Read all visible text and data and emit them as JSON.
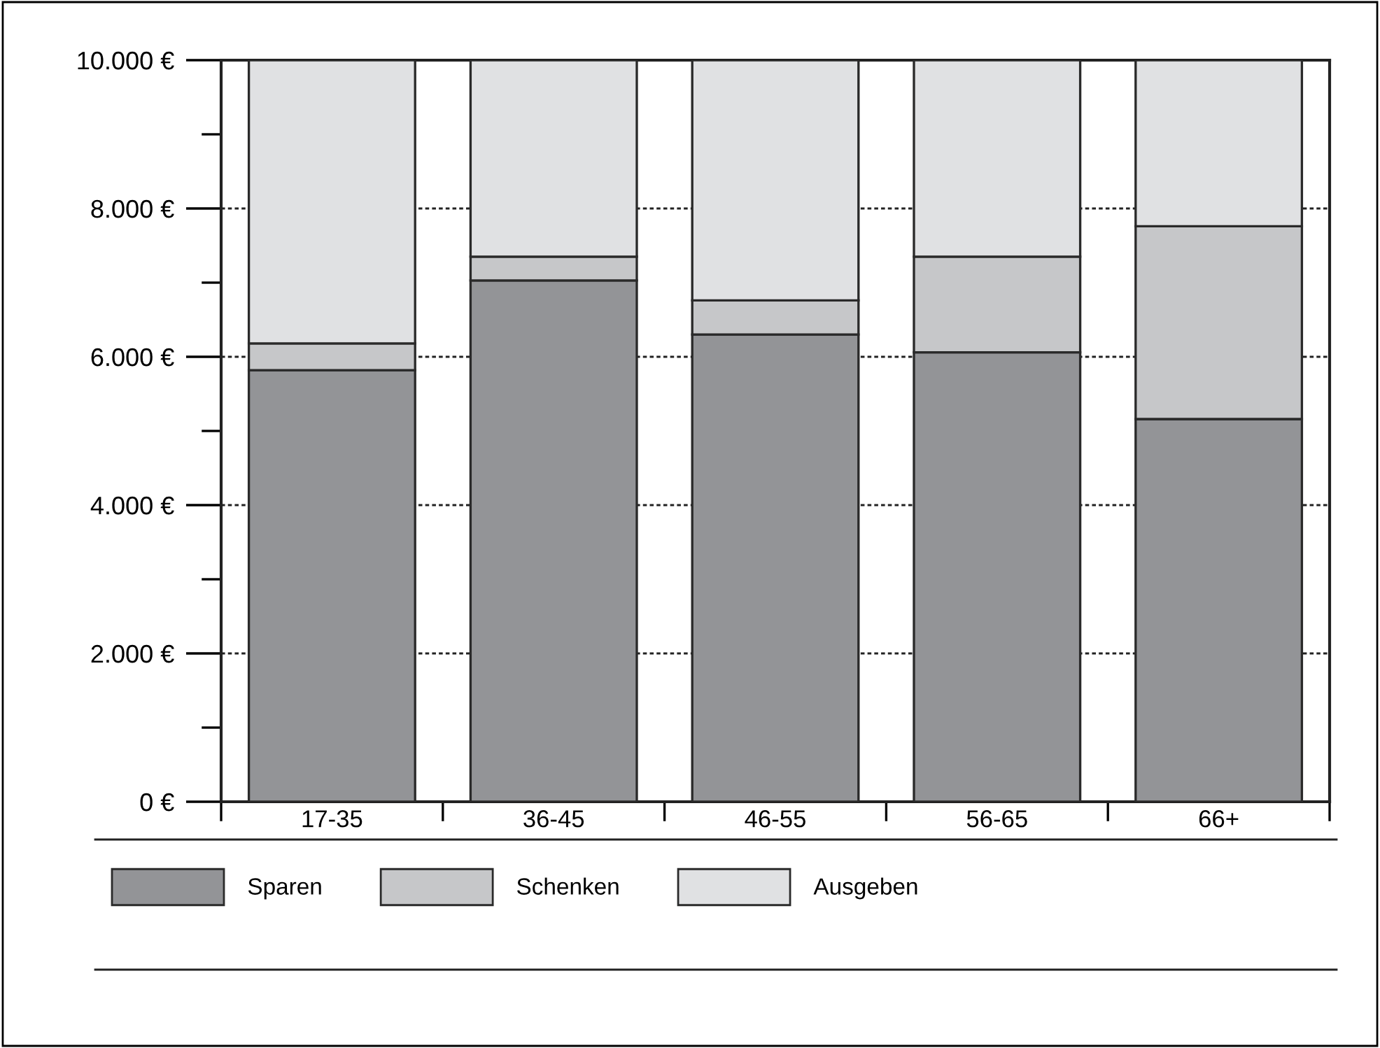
{
  "chart_data": {
    "type": "bar",
    "stacked": true,
    "categories": [
      "17-35",
      "36-45",
      "46-55",
      "56-65",
      "66+"
    ],
    "series": [
      {
        "name": "Sparen",
        "color": "#939497",
        "values": [
          5820,
          7030,
          6300,
          6060,
          5160
        ]
      },
      {
        "name": "Schenken",
        "color": "#c6c7c9",
        "values": [
          360,
          320,
          460,
          1290,
          2600
        ]
      },
      {
        "name": "Ausgeben",
        "color": "#e0e1e3",
        "values": [
          3820,
          2650,
          3240,
          2650,
          2240
        ]
      }
    ],
    "ylim": [
      0,
      10000
    ],
    "yticks": [
      {
        "value": 0,
        "label": "0 €"
      },
      {
        "value": 1000,
        "label": null
      },
      {
        "value": 2000,
        "label": "2.000 €"
      },
      {
        "value": 3000,
        "label": null
      },
      {
        "value": 4000,
        "label": "4.000 €"
      },
      {
        "value": 5000,
        "label": null
      },
      {
        "value": 6000,
        "label": "6.000 €"
      },
      {
        "value": 7000,
        "label": null
      },
      {
        "value": 8000,
        "label": "8.000 €"
      },
      {
        "value": 9000,
        "label": null
      },
      {
        "value": 10000,
        "label": "10.000 €"
      }
    ],
    "grid": "y",
    "legend": "bottom"
  }
}
